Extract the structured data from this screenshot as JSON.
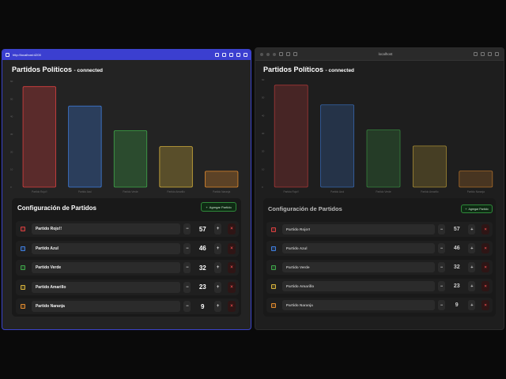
{
  "left_window": {
    "url": "http://localhost:4200",
    "title": "Partidos Políticos",
    "status": "- connected"
  },
  "right_window": {
    "url": "localhost",
    "title": "Partidos Políticos",
    "status": "- connected"
  },
  "config": {
    "title": "Configuración de Partidos",
    "add_label": "Agregar Partido",
    "add_icon": "+",
    "minus": "−",
    "plus": "+",
    "delete": "×"
  },
  "chart_data": {
    "type": "bar",
    "categories": [
      "Partido Rojo!!",
      "Partido Azul",
      "Partido Verde",
      "Partido Amarillo",
      "Partido Naranja"
    ],
    "values": [
      57,
      46,
      32,
      23,
      9
    ],
    "colors": [
      "#d94040",
      "#3f7fe0",
      "#3fa84a",
      "#d8b33c",
      "#e08a2e"
    ],
    "ylim": [
      0,
      60
    ],
    "yticks": [
      0,
      10,
      20,
      30,
      40,
      50,
      60
    ]
  },
  "parties": [
    {
      "name": "Partido Rojo!!",
      "value": "57",
      "color": "#d94040"
    },
    {
      "name": "Partido Azul",
      "value": "46",
      "color": "#3f7fe0"
    },
    {
      "name": "Partido Verde",
      "value": "32",
      "color": "#3fa84a"
    },
    {
      "name": "Partido Amarillo",
      "value": "23",
      "color": "#d8b33c"
    },
    {
      "name": "Partido Naranja",
      "value": "9",
      "color": "#e08a2e"
    }
  ]
}
